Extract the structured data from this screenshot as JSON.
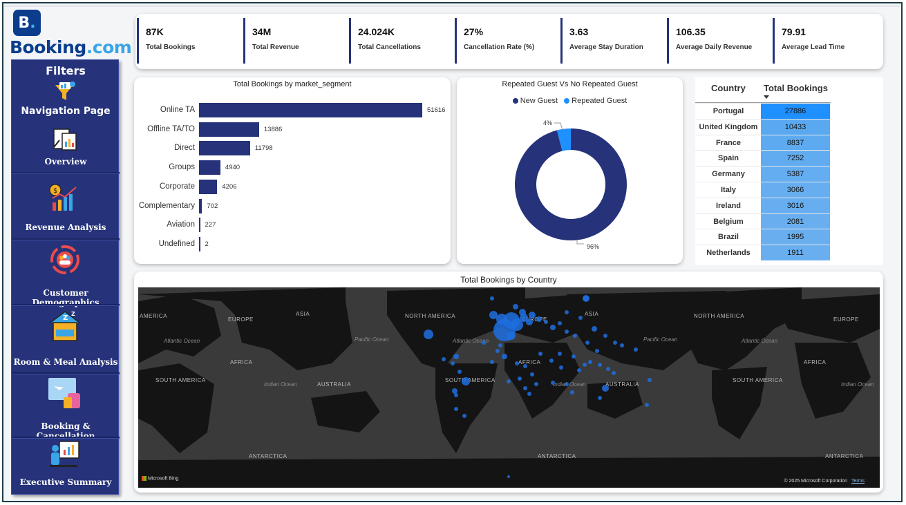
{
  "brand": {
    "logo_letter": "B",
    "logo_dot": ".",
    "name_main": "Booking",
    "name_com": ".com"
  },
  "sidebar": {
    "filters_title": "Filters",
    "nav_title": "Navigation Page",
    "items": [
      {
        "label": "Overview",
        "icon": "clipboard-chart-icon"
      },
      {
        "label": "Revenue Analysis",
        "icon": "revenue-chart-icon"
      },
      {
        "label": "Customer Demographics",
        "icon": "people-cycle-icon"
      },
      {
        "label": "Room & Meal Analysis",
        "icon": "hotel-bed-icon"
      },
      {
        "label": "Booking & Cancellation",
        "icon": "travel-luggage-icon"
      },
      {
        "label": "Executive Summary",
        "icon": "presentation-icon"
      }
    ]
  },
  "kpis": [
    {
      "value": "87K",
      "label": "Total Bookings"
    },
    {
      "value": "34M",
      "label": "Total Revenue"
    },
    {
      "value": "24.024K",
      "label": "Total Cancellations"
    },
    {
      "value": "27%",
      "label": "Cancellation Rate (%)"
    },
    {
      "value": "3.63",
      "label": "Average Stay Duration"
    },
    {
      "value": "106.35",
      "label": "Average Daily Revenue"
    },
    {
      "value": "79.91",
      "label": "Average Lead Time"
    }
  ],
  "chart_data": [
    {
      "type": "bar",
      "title": "Total Bookings by market_segment",
      "orientation": "horizontal",
      "categories": [
        "Online TA",
        "Offline TA/TO",
        "Direct",
        "Groups",
        "Corporate",
        "Complementary",
        "Aviation",
        "Undefined"
      ],
      "values": [
        51616,
        13886,
        11798,
        4940,
        4206,
        702,
        227,
        2
      ],
      "value_labels": [
        "51616",
        "13886",
        "11798",
        "4940",
        "4206",
        "702",
        "227",
        "2"
      ],
      "color": "#26337a"
    },
    {
      "type": "pie",
      "donut": true,
      "title": "Repeated Guest Vs No Repeated Guest",
      "legend_position": "top",
      "series": [
        {
          "name": "New Guest",
          "value": 96,
          "label": "96%",
          "color": "#26337a"
        },
        {
          "name": "Repeated Guest",
          "value": 4,
          "label": "4%",
          "color": "#1e90ff"
        }
      ]
    }
  ],
  "country_table": {
    "col_country": "Country",
    "col_total": "Total Bookings",
    "sort_icon": "sort-desc-icon",
    "rows": [
      {
        "country": "Portugal",
        "total": "27886",
        "color": "#1e90ff"
      },
      {
        "country": "United Kingdom",
        "total": "10433",
        "color": "#5aa9f0"
      },
      {
        "country": "France",
        "total": "8837",
        "color": "#5daaf0"
      },
      {
        "country": "Spain",
        "total": "7252",
        "color": "#61acf0"
      },
      {
        "country": "Germany",
        "total": "5387",
        "color": "#64adf0"
      },
      {
        "country": "Italy",
        "total": "3066",
        "color": "#67aef0"
      },
      {
        "country": "Ireland",
        "total": "3016",
        "color": "#67aef0"
      },
      {
        "country": "Belgium",
        "total": "2081",
        "color": "#69aff0"
      },
      {
        "country": "Brazil",
        "total": "1995",
        "color": "#69aff0"
      },
      {
        "country": "Netherlands",
        "total": "1911",
        "color": "#69aff0"
      }
    ]
  },
  "map": {
    "title": "Total Bookings by Country",
    "continents": [
      "AMERICA",
      "EUROPE",
      "ASIA",
      "NORTH AMERICA",
      "EUROPE",
      "ASIA",
      "NORTH AMERICA",
      "EUROPE",
      "AFRICA",
      "AFRICA",
      "AFRICA",
      "SOUTH AMERICA",
      "SOUTH AMERICA",
      "AUSTRALIA",
      "AUSTRALIA",
      "SOUTH AMERICA",
      "ANTARCTICA",
      "ANTARCTICA",
      "ANTARCTICA"
    ],
    "oceans": [
      "Atlantic Ocean",
      "Pacific Ocean",
      "Atlantic Ocean",
      "Pacific Ocean",
      "Atlantic Ocean",
      "Indian Ocean",
      "Indian Ocean",
      "Indian Ocean"
    ],
    "attribution_left": "Microsoft Bing",
    "attribution_right": "© 2025 Microsoft Corporation",
    "terms": "Terms",
    "bubble_color": "#1e6fe0"
  }
}
